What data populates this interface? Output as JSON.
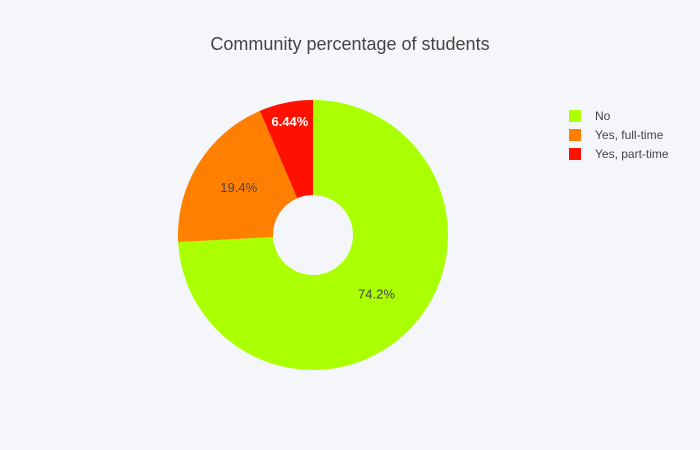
{
  "chart_data": {
    "type": "pie",
    "hole": true,
    "title": "Community percentage of students",
    "slices": [
      {
        "label": "No",
        "value": 74.2,
        "display": "74.2%",
        "color": "#aaff00",
        "text_color": "#444444"
      },
      {
        "label": "Yes, full-time",
        "value": 19.4,
        "display": "19.4%",
        "color": "#ff8000",
        "text_color": "#444444"
      },
      {
        "label": "Yes, part-time",
        "value": 6.44,
        "display": "6.44%",
        "color": "#ff1100",
        "text_color": "#ffffff"
      }
    ],
    "legend": {
      "placement": "top-right",
      "entries": [
        {
          "label": "No",
          "color": "#aaff00"
        },
        {
          "label": "Yes, full-time",
          "color": "#ff8000"
        },
        {
          "label": "Yes, part-time",
          "color": "#ff1100"
        }
      ]
    }
  }
}
